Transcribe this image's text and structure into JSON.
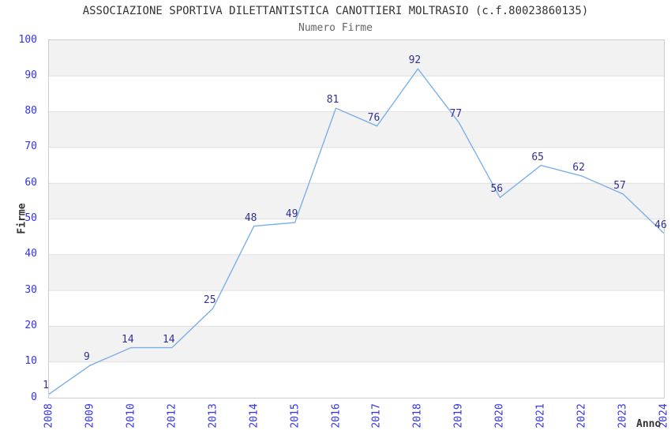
{
  "chart_data": {
    "type": "line",
    "title": "ASSOCIAZIONE SPORTIVA DILETTANTISTICA CANOTTIERI MOLTRASIO (c.f.80023860135)",
    "subtitle": "Numero Firme",
    "xlabel": "Anno",
    "ylabel": "Firme",
    "categories": [
      "2008",
      "2009",
      "2010",
      "2012",
      "2013",
      "2014",
      "2015",
      "2016",
      "2017",
      "2018",
      "2019",
      "2020",
      "2021",
      "2022",
      "2023",
      "2024"
    ],
    "values": [
      1,
      9,
      14,
      14,
      25,
      48,
      49,
      81,
      76,
      92,
      77,
      56,
      65,
      62,
      57,
      46
    ],
    "ylim": [
      0,
      100
    ],
    "yticks": [
      0,
      10,
      20,
      30,
      40,
      50,
      60,
      70,
      80,
      90,
      100
    ],
    "grid": true,
    "legend": "none",
    "band_pattern": "alternating-horizontal",
    "colors": {
      "line": "#7cb0e8",
      "data_label": "#32328f",
      "tick_label": "#3333e6",
      "band_fill": "#f2f2f2",
      "gridline": "#e0e0e0",
      "plot_border": "#cccccc",
      "title": "#333333",
      "subtitle": "#666666",
      "axis_title": "#333333"
    }
  }
}
